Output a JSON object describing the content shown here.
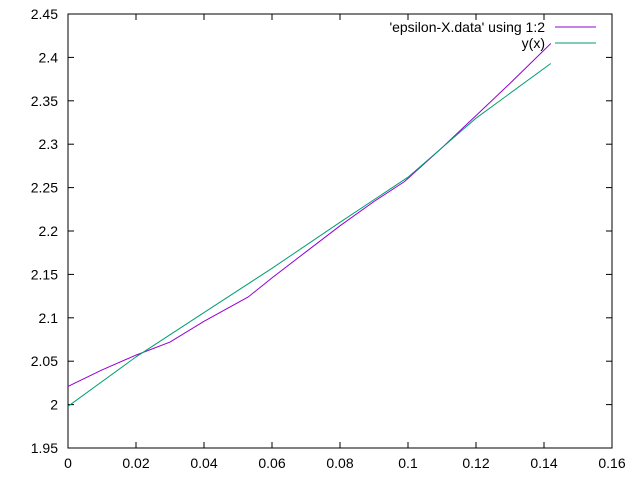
{
  "chart_data": {
    "type": "line",
    "title": "",
    "xlabel": "",
    "ylabel": "",
    "xlim": [
      0,
      0.16
    ],
    "ylim": [
      1.95,
      2.45
    ],
    "x_ticks": [
      "0",
      "0.02",
      "0.04",
      "0.06",
      "0.08",
      "0.1",
      "0.12",
      "0.14",
      "0.16"
    ],
    "y_ticks": [
      "1.95",
      "2",
      "2.05",
      "2.1",
      "2.15",
      "2.2",
      "2.25",
      "2.3",
      "2.35",
      "2.4",
      "2.45"
    ],
    "grid": false,
    "legend_position": "top-right",
    "series": [
      {
        "name": "'epsilon-X.data' using 1:2",
        "color": "#9400d3",
        "points": [
          [
            0,
            2.021
          ],
          [
            0.01,
            2.04
          ],
          [
            0.02,
            2.057
          ],
          [
            0.03,
            2.072
          ],
          [
            0.04,
            2.096
          ],
          [
            0.053,
            2.124
          ],
          [
            0.06,
            2.146
          ],
          [
            0.07,
            2.176
          ],
          [
            0.08,
            2.206
          ],
          [
            0.09,
            2.234
          ],
          [
            0.099,
            2.257
          ],
          [
            0.11,
            2.296
          ],
          [
            0.12,
            2.333
          ],
          [
            0.13,
            2.37
          ],
          [
            0.142,
            2.416
          ]
        ]
      },
      {
        "name": "y(x)",
        "color": "#009e73",
        "points": [
          [
            0,
            1.998
          ],
          [
            0.02,
            2.055
          ],
          [
            0.04,
            2.106
          ],
          [
            0.06,
            2.157
          ],
          [
            0.08,
            2.21
          ],
          [
            0.1,
            2.262
          ],
          [
            0.12,
            2.33
          ],
          [
            0.142,
            2.393
          ]
        ]
      }
    ]
  }
}
